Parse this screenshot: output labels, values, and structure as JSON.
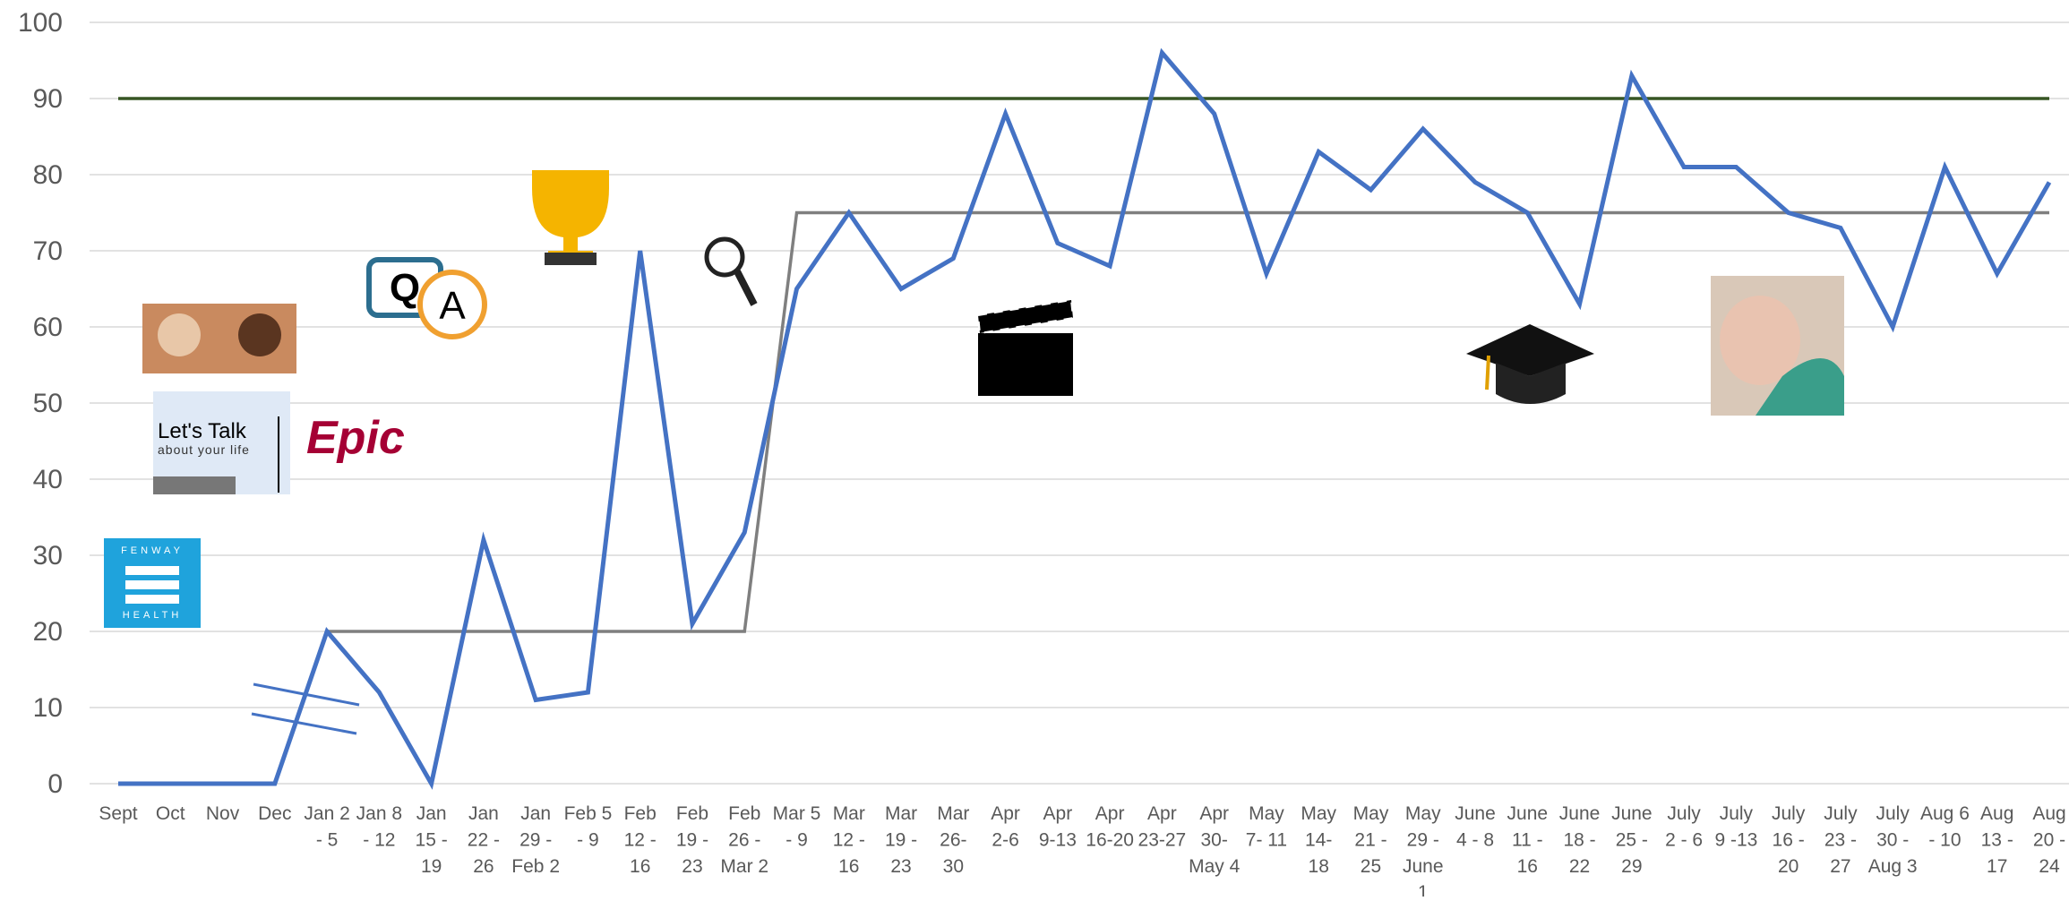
{
  "chart_data": {
    "type": "line",
    "categories": [
      "Sept",
      "Oct",
      "Nov",
      "Dec",
      "Jan 2 - 5",
      "Jan 8 - 12",
      "Jan 15 - 19",
      "Jan 22 - 26",
      "Jan 29 - Feb 2",
      "Feb 5 - 9",
      "Feb 12 - 16",
      "Feb 19 - 23",
      "Feb 26 - Mar 2",
      "Mar 5 - 9",
      "Mar 12 - 16",
      "Mar 19 - 23",
      "Mar 26- 30",
      "Apr 2-6",
      "Apr 9-13",
      "Apr 16-20",
      "Apr 23-27",
      "Apr 30- May 4",
      "May 7- 11",
      "May 14- 18",
      "May 21 - 25",
      "May 29 - June 1",
      "June 4 - 8",
      "June 11 - 16",
      "June 18 - 22",
      "June 25 - 29",
      "July 2 - 6",
      "July 9 -13",
      "July 16 - 20",
      "July 23 - 27",
      "July 30 - Aug 3",
      "Aug 6 - 10",
      "Aug 13 - 17",
      "Aug 20 - 24"
    ],
    "series": [
      {
        "color": "#375623",
        "values": [
          90,
          90,
          90,
          90,
          90,
          90,
          90,
          90,
          90,
          90,
          90,
          90,
          90,
          90,
          90,
          90,
          90,
          90,
          90,
          90,
          90,
          90,
          90,
          90,
          90,
          90,
          90,
          90,
          90,
          90,
          90,
          90,
          90,
          90,
          90,
          90,
          90,
          90
        ]
      },
      {
        "color": "#7f7f7f",
        "values": [
          0,
          0,
          0,
          0,
          20,
          20,
          20,
          20,
          20,
          20,
          20,
          20,
          20,
          75,
          75,
          75,
          75,
          75,
          75,
          75,
          75,
          75,
          75,
          75,
          75,
          75,
          75,
          75,
          75,
          75,
          75,
          75,
          75,
          75,
          75,
          75,
          75,
          75
        ]
      },
      {
        "color": "#4472c4",
        "values": [
          0,
          0,
          0,
          0,
          20,
          12,
          0,
          32,
          11,
          12,
          70,
          21,
          33,
          65,
          75,
          65,
          69,
          88,
          71,
          68,
          96,
          88,
          67,
          83,
          78,
          86,
          79,
          75,
          63,
          93,
          81,
          81,
          75,
          73,
          60,
          81,
          67,
          79
        ]
      }
    ],
    "ylim": [
      0,
      100
    ],
    "yticks": [
      0,
      10,
      20,
      30,
      40,
      50,
      60,
      70,
      80,
      90,
      100
    ],
    "grid": true
  },
  "icons": {
    "fenway_top": "FENWAY",
    "fenway_bottom": "HEALTH",
    "talk_title": "Let's Talk",
    "talk_sub": "about your life",
    "epic": "Epic",
    "q": "Q",
    "a": "A"
  }
}
